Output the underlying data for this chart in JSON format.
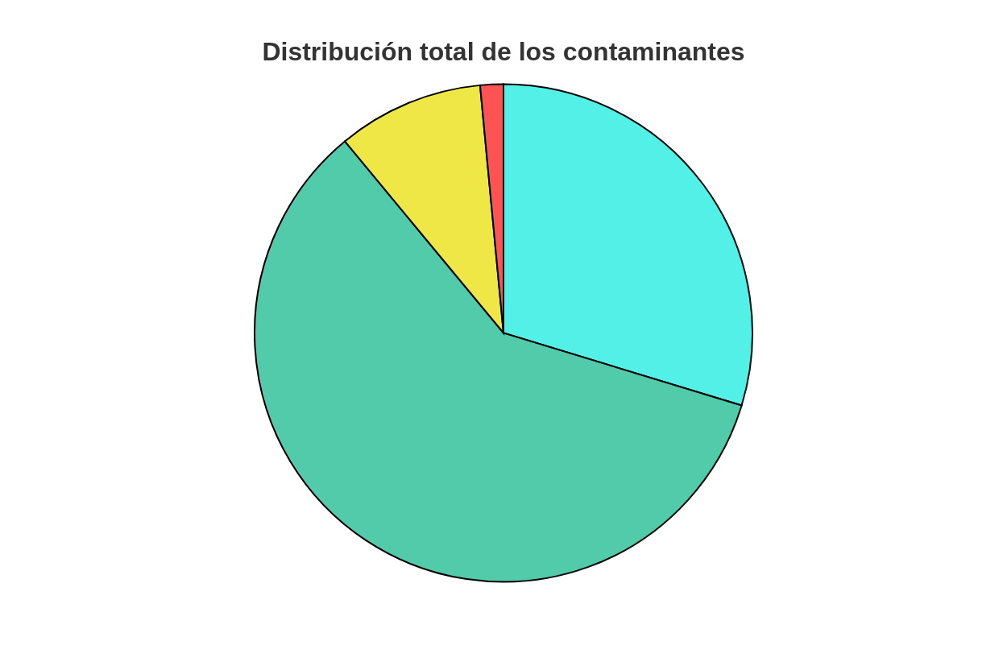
{
  "chart_data": {
    "type": "pie",
    "title": "Distribución total de los contaminantes",
    "categories": [
      null,
      null,
      null,
      null
    ],
    "values": [
      29.7,
      59.3,
      9.5,
      1.5
    ],
    "colors": [
      "#52f0e6",
      "#52cbab",
      "#eee745",
      "#ff5252"
    ],
    "legend": false
  }
}
